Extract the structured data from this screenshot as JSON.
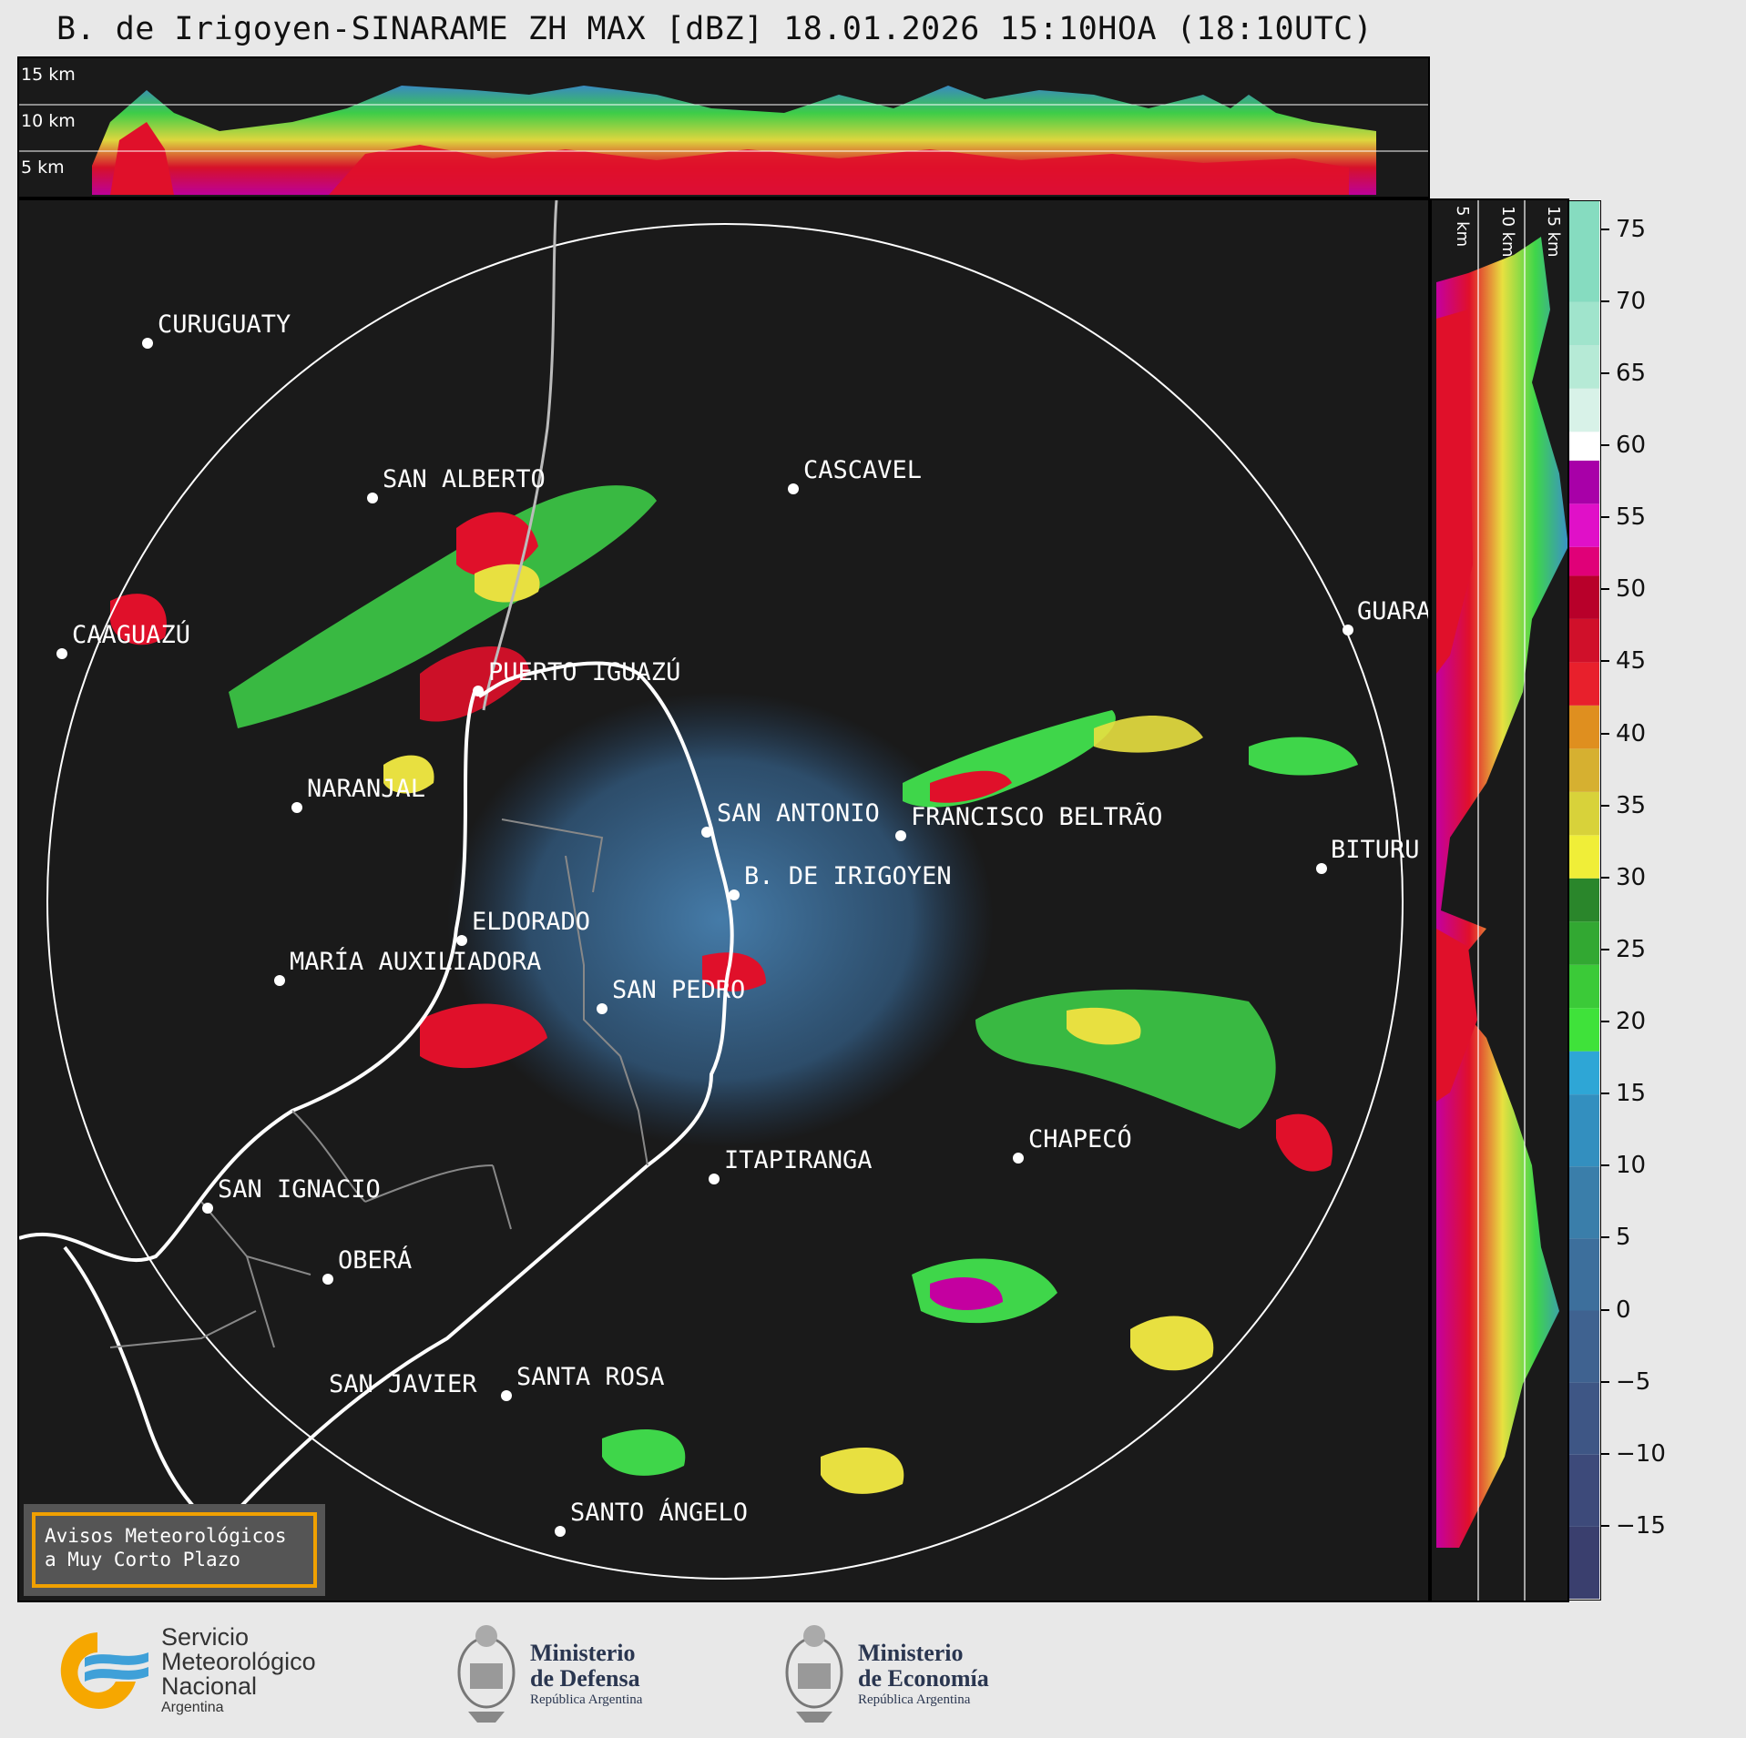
{
  "title": "B. de Irigoyen-SINARAME ZH MAX [dBZ] 18.01.2026 15:10HOA (18:10UTC)",
  "top_panel": {
    "height_labels": [
      "15 km",
      "10 km",
      "5 km"
    ]
  },
  "right_panel": {
    "height_labels": [
      "5 km",
      "10 km",
      "15 km"
    ]
  },
  "cities": [
    {
      "name": "CURUGUATY"
    },
    {
      "name": "SAN ALBERTO"
    },
    {
      "name": "CASCAVEL"
    },
    {
      "name": "CAAGUAZÚ"
    },
    {
      "name": "PUERTO IGUAZÚ"
    },
    {
      "name": "GUARA"
    },
    {
      "name": "NARANJAL"
    },
    {
      "name": "SAN ANTONIO"
    },
    {
      "name": "FRANCISCO BELTRÃO"
    },
    {
      "name": "BITURU"
    },
    {
      "name": "B. DE IRIGOYEN"
    },
    {
      "name": "ELDORADO"
    },
    {
      "name": "MARÍA AUXILIADORA"
    },
    {
      "name": "SAN PEDRO"
    },
    {
      "name": "CHAPECÓ"
    },
    {
      "name": "ITAPIRANGA"
    },
    {
      "name": "SAN IGNACIO"
    },
    {
      "name": "OBERÁ"
    },
    {
      "name": "SAN JAVIER"
    },
    {
      "name": "SANTA ROSA"
    },
    {
      "name": "SANTO ÁNGELO"
    }
  ],
  "colorbar": {
    "unit": "dBZ",
    "range": [
      -20,
      77
    ],
    "ticks": [
      "75",
      "70",
      "65",
      "60",
      "55",
      "50",
      "45",
      "40",
      "35",
      "30",
      "25",
      "20",
      "15",
      "10",
      "5",
      "0",
      "−5",
      "−10",
      "−15"
    ],
    "ticks_values": [
      75,
      70,
      65,
      60,
      55,
      50,
      45,
      40,
      35,
      30,
      25,
      20,
      15,
      10,
      5,
      0,
      -5,
      -10,
      -15
    ]
  },
  "warning": {
    "line1": "Avisos Meteorológicos",
    "line2": "a Muy Corto Plazo"
  },
  "logos": {
    "smn": {
      "line1": "Servicio",
      "line2": "Meteorológico",
      "line3": "Nacional",
      "line4": "Argentina"
    },
    "defensa": {
      "line1": "Ministerio",
      "line2": "de Defensa",
      "line3": "República Argentina"
    },
    "economia": {
      "line1": "Ministerio",
      "line2": "de Economía",
      "line3": "República Argentina"
    }
  }
}
